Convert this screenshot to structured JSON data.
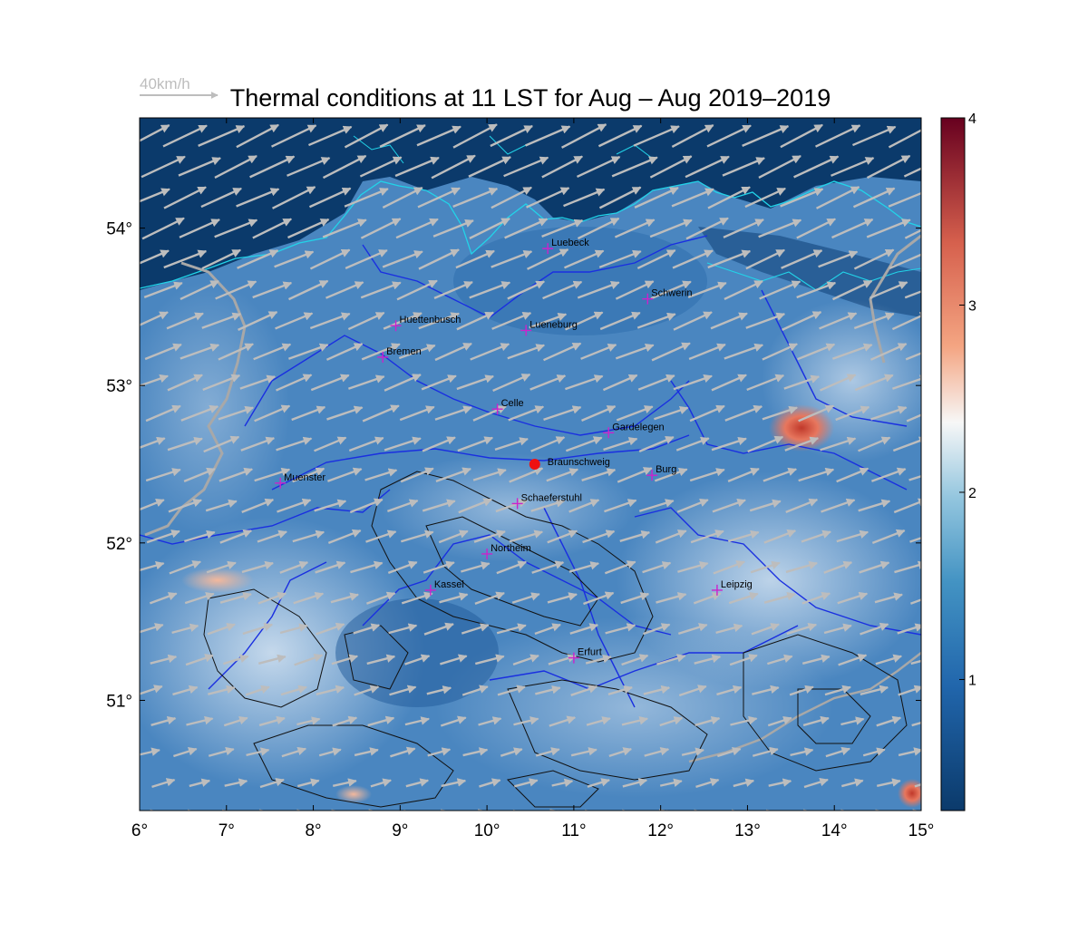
{
  "title": "Thermal conditions at 11 LST for Aug – Aug  2019–2019",
  "wind_scale_label": "40km/h",
  "x_ticks": [
    "6°",
    "7°",
    "8°",
    "9°",
    "10°",
    "11°",
    "12°",
    "13°",
    "14°",
    "15°"
  ],
  "y_ticks": [
    "51°",
    "52°",
    "53°",
    "54°"
  ],
  "colorbar_ticks": [
    "1",
    "2",
    "3",
    "4"
  ],
  "colors": {
    "sea": "#0b3a6b",
    "land_mid": "#3d7bb8",
    "land_light": "#9cc3e4",
    "hot": "#c0392b",
    "wind_arrow": "#bdbdbd",
    "rivers": "#1a2fe0",
    "coast": "#22d3e8",
    "contours": "#111111",
    "city_marker": "#cc22cc",
    "site_marker": "#ee1111"
  },
  "map": {
    "lon_range": [
      6,
      15
    ],
    "lat_range": [
      50.3,
      54.7
    ],
    "cities": [
      {
        "name": "Luebeck",
        "lon": 10.7,
        "lat": 53.87
      },
      {
        "name": "Schwerin",
        "lon": 11.85,
        "lat": 53.55
      },
      {
        "name": "Huettenbusch",
        "lon": 8.95,
        "lat": 53.38
      },
      {
        "name": "Lueneburg",
        "lon": 10.45,
        "lat": 53.35
      },
      {
        "name": "Bremen",
        "lon": 8.8,
        "lat": 53.18
      },
      {
        "name": "Celle",
        "lon": 10.12,
        "lat": 52.85
      },
      {
        "name": "Gardelegen",
        "lon": 11.4,
        "lat": 52.7
      },
      {
        "name": "Burg",
        "lon": 11.9,
        "lat": 52.43
      },
      {
        "name": "Muenster",
        "lon": 7.62,
        "lat": 52.38
      },
      {
        "name": "Schaeferstuhl",
        "lon": 10.35,
        "lat": 52.25
      },
      {
        "name": "Northeim",
        "lon": 10.0,
        "lat": 51.93
      },
      {
        "name": "Kassel",
        "lon": 9.35,
        "lat": 51.7
      },
      {
        "name": "Leipzig",
        "lon": 12.65,
        "lat": 51.7
      },
      {
        "name": "Erfurt",
        "lon": 11.0,
        "lat": 51.27
      }
    ],
    "site": {
      "name": "Braunschweig",
      "lon": 10.55,
      "lat": 52.5
    }
  },
  "colorbar": {
    "min": 0.3,
    "max": 4.0,
    "ticks": [
      1,
      2,
      3,
      4
    ]
  }
}
